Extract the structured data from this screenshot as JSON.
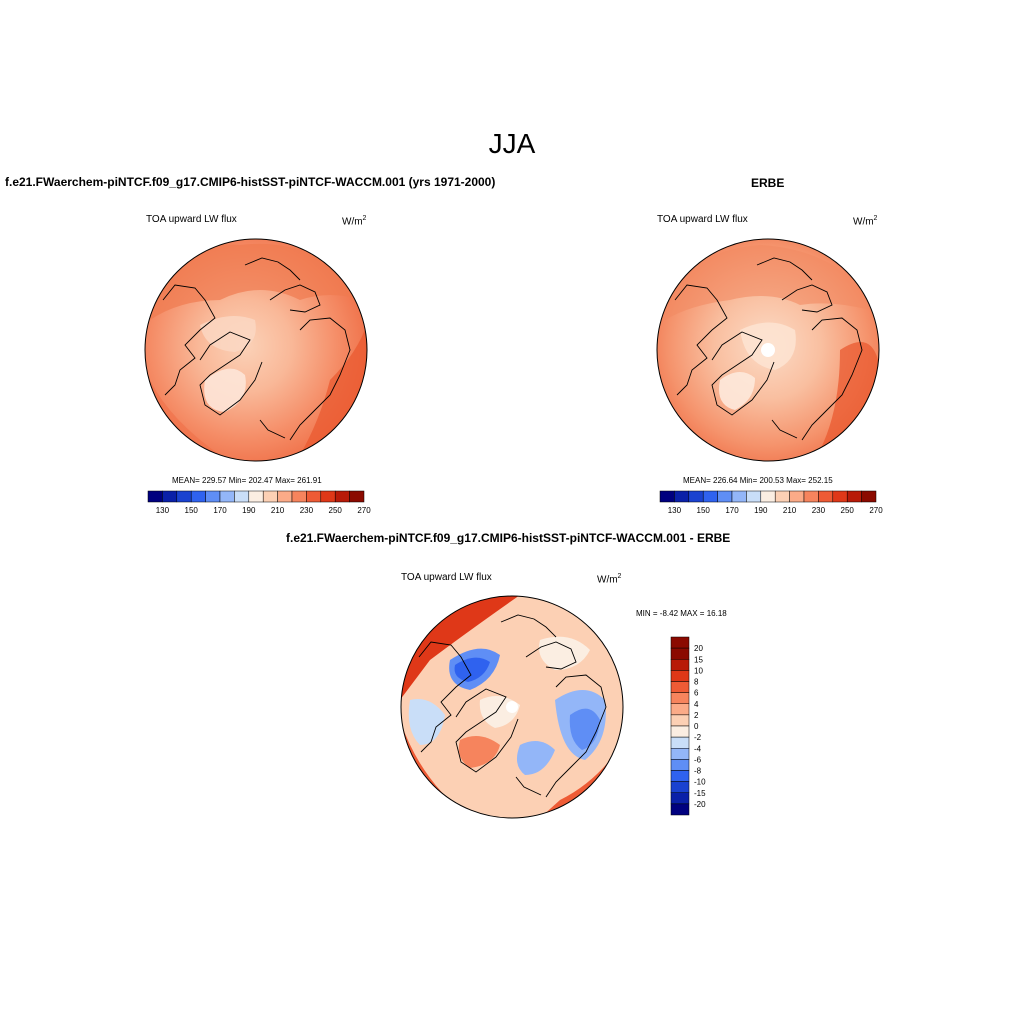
{
  "title": "JJA",
  "panels": [
    {
      "heading": "f.e21.FWaerchem-piNTCF.f09_g17.CMIP6-histSST-piNTCF-WACCM.001 (yrs 1971-2000)",
      "variable": "TOA upward LW flux",
      "units_base": "W/m",
      "units_exp": "2",
      "stats": "MEAN= 229.57   Min= 202.47   Max= 261.91",
      "colorbar_ticks": [
        "130",
        "150",
        "170",
        "190",
        "210",
        "230",
        "250",
        "270"
      ]
    },
    {
      "heading": "ERBE",
      "variable": "TOA upward LW flux",
      "units_base": "W/m",
      "units_exp": "2",
      "stats": "MEAN= 226.64   Min= 200.53   Max= 252.15",
      "colorbar_ticks": [
        "130",
        "150",
        "170",
        "190",
        "210",
        "230",
        "250",
        "270"
      ]
    },
    {
      "heading": "f.e21.FWaerchem-piNTCF.f09_g17.CMIP6-histSST-piNTCF-WACCM.001 - ERBE",
      "variable": "TOA upward LW flux",
      "units_base": "W/m",
      "units_exp": "2",
      "stats": "MIN =  -8.42 MAX =  16.18",
      "colorbar_ticks": [
        "20",
        "15",
        "10",
        "8",
        "6",
        "4",
        "2",
        "0",
        "-2",
        "-4",
        "-6",
        "-8",
        "-10",
        "-15",
        "-20"
      ]
    }
  ],
  "colors": {
    "abs_scale": [
      "#00007f",
      "#0a20a8",
      "#1a42d0",
      "#2f62ef",
      "#5f8ef5",
      "#93b6f8",
      "#c9def8",
      "#fbeee2",
      "#fcd0b4",
      "#fbab88",
      "#f6845d",
      "#ee5b35",
      "#df3818",
      "#b81a08",
      "#8b0a00"
    ],
    "diff_scale": [
      "#8b0a00",
      "#b81a08",
      "#df3818",
      "#ee5b35",
      "#f6845d",
      "#fbab88",
      "#fcd0b4",
      "#fbeee2",
      "#c9def8",
      "#93b6f8",
      "#5f8ef5",
      "#2f62ef",
      "#1a42d0",
      "#0a20a8",
      "#00007f"
    ]
  }
}
